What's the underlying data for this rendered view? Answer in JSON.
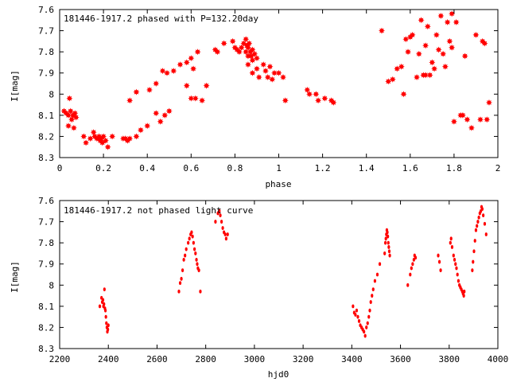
{
  "chart_data": [
    {
      "type": "scatter",
      "title": "181446-1917.2 phased with P=132.20day",
      "xlabel": "phase",
      "ylabel": "I[mag]",
      "xlim": [
        0,
        2
      ],
      "ylim": [
        8.3,
        7.6
      ],
      "y_inverted": true,
      "grid": false,
      "marker": "star",
      "color": "#ff0000",
      "x_ticks": [
        "0",
        "0.2",
        "0.4",
        "0.6",
        "0.8",
        "1",
        "1.2",
        "1.4",
        "1.6",
        "1.8",
        "2"
      ],
      "y_ticks": [
        "7.6",
        "7.7",
        "7.8",
        "7.9",
        "8",
        "8.1",
        "8.2",
        "8.3"
      ],
      "points": [
        [
          0.02,
          8.08
        ],
        [
          0.03,
          8.09
        ],
        [
          0.04,
          8.1
        ],
        [
          0.045,
          8.02
        ],
        [
          0.05,
          8.08
        ],
        [
          0.055,
          8.12
        ],
        [
          0.06,
          8.1
        ],
        [
          0.065,
          8.16
        ],
        [
          0.07,
          8.09
        ],
        [
          0.075,
          8.11
        ],
        [
          0.04,
          8.15
        ],
        [
          0.11,
          8.2
        ],
        [
          0.12,
          8.23
        ],
        [
          0.14,
          8.21
        ],
        [
          0.155,
          8.18
        ],
        [
          0.16,
          8.2
        ],
        [
          0.17,
          8.21
        ],
        [
          0.18,
          8.2
        ],
        [
          0.185,
          8.22
        ],
        [
          0.19,
          8.21
        ],
        [
          0.195,
          8.23
        ],
        [
          0.2,
          8.2
        ],
        [
          0.21,
          8.22
        ],
        [
          0.22,
          8.25
        ],
        [
          0.24,
          8.2
        ],
        [
          0.29,
          8.21
        ],
        [
          0.3,
          8.21
        ],
        [
          0.31,
          8.22
        ],
        [
          0.32,
          8.21
        ],
        [
          0.32,
          8.03
        ],
        [
          0.35,
          7.99
        ],
        [
          0.35,
          8.2
        ],
        [
          0.37,
          8.17
        ],
        [
          0.4,
          8.15
        ],
        [
          0.41,
          7.98
        ],
        [
          0.44,
          7.95
        ],
        [
          0.44,
          8.09
        ],
        [
          0.46,
          8.13
        ],
        [
          0.47,
          7.89
        ],
        [
          0.48,
          8.1
        ],
        [
          0.49,
          7.9
        ],
        [
          0.5,
          8.08
        ],
        [
          0.52,
          7.89
        ],
        [
          0.55,
          7.86
        ],
        [
          0.58,
          7.85
        ],
        [
          0.58,
          7.96
        ],
        [
          0.6,
          7.83
        ],
        [
          0.61,
          7.88
        ],
        [
          0.6,
          8.02
        ],
        [
          0.62,
          8.02
        ],
        [
          0.65,
          8.03
        ],
        [
          0.63,
          7.8
        ],
        [
          0.67,
          7.96
        ],
        [
          0.71,
          7.79
        ],
        [
          0.72,
          7.8
        ],
        [
          0.75,
          7.76
        ],
        [
          0.79,
          7.75
        ],
        [
          0.8,
          7.78
        ],
        [
          0.81,
          7.79
        ],
        [
          0.82,
          7.8
        ],
        [
          0.83,
          7.78
        ],
        [
          0.84,
          7.76
        ],
        [
          0.85,
          7.74
        ],
        [
          0.85,
          7.8
        ],
        [
          0.855,
          7.77
        ],
        [
          0.86,
          7.82
        ],
        [
          0.86,
          7.78
        ],
        [
          0.865,
          7.76
        ],
        [
          0.87,
          7.8
        ],
        [
          0.875,
          7.82
        ],
        [
          0.88,
          7.79
        ],
        [
          0.88,
          7.84
        ],
        [
          0.89,
          7.81
        ],
        [
          0.9,
          7.83
        ],
        [
          0.86,
          7.86
        ],
        [
          0.88,
          7.9
        ],
        [
          0.9,
          7.88
        ],
        [
          0.91,
          7.92
        ],
        [
          0.93,
          7.86
        ],
        [
          0.94,
          7.89
        ],
        [
          0.95,
          7.92
        ],
        [
          0.96,
          7.87
        ],
        [
          0.97,
          7.93
        ],
        [
          0.98,
          7.9
        ],
        [
          1.0,
          7.9
        ],
        [
          1.02,
          7.92
        ],
        [
          1.03,
          8.03
        ],
        [
          1.13,
          7.98
        ],
        [
          1.14,
          8.0
        ],
        [
          1.17,
          8.0
        ],
        [
          1.18,
          8.03
        ],
        [
          1.21,
          8.02
        ],
        [
          1.24,
          8.03
        ],
        [
          1.25,
          8.04
        ],
        [
          1.47,
          7.7
        ],
        [
          1.5,
          7.94
        ],
        [
          1.52,
          7.93
        ],
        [
          1.54,
          7.88
        ],
        [
          1.56,
          7.87
        ],
        [
          1.57,
          8.0
        ],
        [
          1.58,
          7.74
        ],
        [
          1.59,
          7.8
        ],
        [
          1.6,
          7.73
        ],
        [
          1.61,
          7.72
        ],
        [
          1.63,
          7.92
        ],
        [
          1.64,
          7.81
        ],
        [
          1.65,
          7.65
        ],
        [
          1.66,
          7.91
        ],
        [
          1.67,
          7.91
        ],
        [
          1.67,
          7.77
        ],
        [
          1.68,
          7.68
        ],
        [
          1.69,
          7.91
        ],
        [
          1.7,
          7.85
        ],
        [
          1.71,
          7.88
        ],
        [
          1.72,
          7.72
        ],
        [
          1.73,
          7.79
        ],
        [
          1.74,
          7.63
        ],
        [
          1.75,
          7.81
        ],
        [
          1.76,
          7.87
        ],
        [
          1.77,
          7.66
        ],
        [
          1.78,
          7.75
        ],
        [
          1.79,
          7.62
        ],
        [
          1.79,
          7.78
        ],
        [
          1.8,
          8.13
        ],
        [
          1.81,
          7.66
        ],
        [
          1.83,
          8.1
        ],
        [
          1.84,
          8.1
        ],
        [
          1.85,
          7.82
        ],
        [
          1.86,
          8.12
        ],
        [
          1.88,
          8.16
        ],
        [
          1.9,
          7.72
        ],
        [
          1.92,
          8.12
        ],
        [
          1.93,
          7.75
        ],
        [
          1.94,
          7.76
        ],
        [
          1.95,
          8.12
        ],
        [
          1.96,
          8.04
        ]
      ]
    },
    {
      "type": "scatter",
      "title": "181446-1917.2 not phased light curve",
      "xlabel": "hjd0",
      "ylabel": "I[mag]",
      "xlim": [
        2200,
        4000
      ],
      "ylim": [
        8.3,
        7.6
      ],
      "y_inverted": true,
      "grid": false,
      "marker": "dot",
      "color": "#ff0000",
      "x_ticks": [
        "2200",
        "2400",
        "2600",
        "2800",
        "3000",
        "3200",
        "3400",
        "3600",
        "3800",
        "4000"
      ],
      "y_ticks": [
        "7.6",
        "7.7",
        "7.8",
        "7.9",
        "8",
        "8.1",
        "8.2",
        "8.3"
      ],
      "points": [
        [
          2365,
          8.1
        ],
        [
          2372,
          8.06
        ],
        [
          2375,
          8.08
        ],
        [
          2378,
          8.07
        ],
        [
          2380,
          8.1
        ],
        [
          2382,
          8.09
        ],
        [
          2384,
          8.02
        ],
        [
          2386,
          8.11
        ],
        [
          2388,
          8.12
        ],
        [
          2390,
          8.15
        ],
        [
          2392,
          8.18
        ],
        [
          2394,
          8.2
        ],
        [
          2396,
          8.22
        ],
        [
          2398,
          8.21
        ],
        [
          2400,
          8.19
        ],
        [
          2690,
          8.03
        ],
        [
          2695,
          7.99
        ],
        [
          2700,
          7.97
        ],
        [
          2705,
          7.93
        ],
        [
          2710,
          7.88
        ],
        [
          2715,
          7.86
        ],
        [
          2720,
          7.83
        ],
        [
          2728,
          7.8
        ],
        [
          2733,
          7.78
        ],
        [
          2738,
          7.76
        ],
        [
          2742,
          7.75
        ],
        [
          2746,
          7.77
        ],
        [
          2750,
          7.8
        ],
        [
          2754,
          7.83
        ],
        [
          2758,
          7.85
        ],
        [
          2762,
          7.88
        ],
        [
          2765,
          7.9
        ],
        [
          2768,
          7.92
        ],
        [
          2772,
          7.93
        ],
        [
          2778,
          8.03
        ],
        [
          2840,
          7.7
        ],
        [
          2850,
          7.66
        ],
        [
          2856,
          7.65
        ],
        [
          2860,
          7.67
        ],
        [
          2865,
          7.7
        ],
        [
          2870,
          7.73
        ],
        [
          2875,
          7.75
        ],
        [
          2880,
          7.76
        ],
        [
          2884,
          7.78
        ],
        [
          2890,
          7.76
        ],
        [
          3405,
          8.1
        ],
        [
          3410,
          8.13
        ],
        [
          3415,
          8.14
        ],
        [
          3420,
          8.12
        ],
        [
          3425,
          8.15
        ],
        [
          3430,
          8.17
        ],
        [
          3435,
          8.19
        ],
        [
          3440,
          8.2
        ],
        [
          3445,
          8.21
        ],
        [
          3450,
          8.22
        ],
        [
          3455,
          8.24
        ],
        [
          3460,
          8.2
        ],
        [
          3465,
          8.18
        ],
        [
          3470,
          8.15
        ],
        [
          3474,
          8.12
        ],
        [
          3478,
          8.08
        ],
        [
          3483,
          8.05
        ],
        [
          3488,
          8.02
        ],
        [
          3495,
          7.98
        ],
        [
          3505,
          7.95
        ],
        [
          3515,
          7.9
        ],
        [
          3535,
          7.85
        ],
        [
          3538,
          7.8
        ],
        [
          3540,
          7.78
        ],
        [
          3542,
          7.76
        ],
        [
          3544,
          7.74
        ],
        [
          3546,
          7.75
        ],
        [
          3548,
          7.77
        ],
        [
          3550,
          7.8
        ],
        [
          3552,
          7.82
        ],
        [
          3554,
          7.84
        ],
        [
          3556,
          7.86
        ],
        [
          3630,
          8.0
        ],
        [
          3640,
          7.95
        ],
        [
          3645,
          7.92
        ],
        [
          3650,
          7.9
        ],
        [
          3655,
          7.88
        ],
        [
          3658,
          7.86
        ],
        [
          3662,
          7.87
        ],
        [
          3755,
          7.86
        ],
        [
          3760,
          7.89
        ],
        [
          3765,
          7.93
        ],
        [
          3805,
          7.8
        ],
        [
          3808,
          7.78
        ],
        [
          3812,
          7.82
        ],
        [
          3818,
          7.86
        ],
        [
          3822,
          7.88
        ],
        [
          3826,
          7.9
        ],
        [
          3830,
          7.92
        ],
        [
          3834,
          7.95
        ],
        [
          3838,
          7.98
        ],
        [
          3842,
          8.0
        ],
        [
          3846,
          8.01
        ],
        [
          3850,
          8.02
        ],
        [
          3854,
          8.03
        ],
        [
          3857,
          8.04
        ],
        [
          3860,
          8.05
        ],
        [
          3862,
          8.03
        ],
        [
          3895,
          7.93
        ],
        [
          3898,
          7.89
        ],
        [
          3902,
          7.84
        ],
        [
          3906,
          7.79
        ],
        [
          3910,
          7.74
        ],
        [
          3914,
          7.72
        ],
        [
          3918,
          7.7
        ],
        [
          3922,
          7.68
        ],
        [
          3926,
          7.66
        ],
        [
          3930,
          7.65
        ],
        [
          3933,
          7.63
        ],
        [
          3936,
          7.64
        ],
        [
          3940,
          7.67
        ],
        [
          3946,
          7.71
        ],
        [
          3952,
          7.76
        ]
      ]
    }
  ]
}
